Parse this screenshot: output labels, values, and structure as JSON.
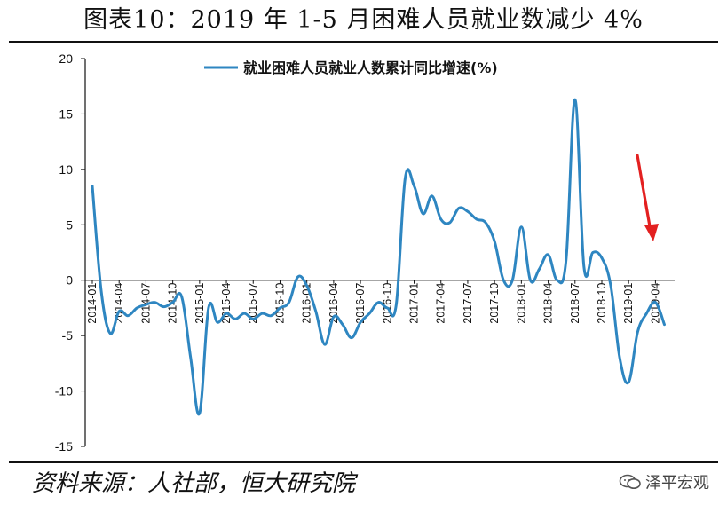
{
  "title": "图表10：2019 年 1-5 月困难人员就业数减少 4%",
  "footer": "资料来源：人社部，恒大研究院",
  "watermark": "泽平宏观",
  "colors": {
    "series": "#2E86C1",
    "arrow": "#E32020",
    "axis": "#111111"
  },
  "icons": {
    "watermark": "wechat-icon"
  },
  "chart_data": {
    "type": "line",
    "series": [
      {
        "name": "就业困难人员就业人数累计同比增速(%)",
        "x": [
          "2014-01",
          "2014-02",
          "2014-03",
          "2014-04",
          "2014-05",
          "2014-06",
          "2014-07",
          "2014-08",
          "2014-09",
          "2014-10",
          "2014-11",
          "2014-12",
          "2015-01",
          "2015-02",
          "2015-03",
          "2015-04",
          "2015-05",
          "2015-06",
          "2015-07",
          "2015-08",
          "2015-09",
          "2015-10",
          "2015-11",
          "2015-12",
          "2016-01",
          "2016-02",
          "2016-03",
          "2016-04",
          "2016-05",
          "2016-06",
          "2016-07",
          "2016-08",
          "2016-09",
          "2016-10",
          "2016-11",
          "2016-12",
          "2017-01",
          "2017-02",
          "2017-03",
          "2017-04",
          "2017-05",
          "2017-06",
          "2017-07",
          "2017-08",
          "2017-09",
          "2017-10",
          "2017-11",
          "2017-12",
          "2018-01",
          "2018-02",
          "2018-03",
          "2018-04",
          "2018-05",
          "2018-06",
          "2018-07",
          "2018-08",
          "2018-09",
          "2018-10",
          "2018-11",
          "2018-12",
          "2019-01",
          "2019-02",
          "2019-03",
          "2019-04",
          "2019-05"
        ],
        "values": [
          8.5,
          -1.0,
          -4.8,
          -2.8,
          -3.2,
          -2.5,
          -2.2,
          -2.0,
          -2.4,
          -2.0,
          -1.5,
          -7.0,
          -12.0,
          -2.5,
          -3.8,
          -3.0,
          -3.5,
          -3.0,
          -3.5,
          -3.0,
          -3.2,
          -2.5,
          -2.0,
          0.3,
          -0.5,
          -2.8,
          -5.8,
          -3.3,
          -4.0,
          -5.2,
          -3.8,
          -3.0,
          -2.0,
          -2.5,
          -2.2,
          9.2,
          8.5,
          6.0,
          7.6,
          5.5,
          5.2,
          6.5,
          6.2,
          5.5,
          5.2,
          3.5,
          0.0,
          0.0,
          4.8,
          0.0,
          1.0,
          2.3,
          0.0,
          1.8,
          16.3,
          1.2,
          2.5,
          2.0,
          -0.5,
          -7.0,
          -9.2,
          -4.7,
          -3.0,
          -2.0,
          -4.0
        ]
      }
    ],
    "x_tick_labels": [
      "2014-01",
      "2014-04",
      "2014-07",
      "2014-10",
      "2015-01",
      "2015-04",
      "2015-07",
      "2015-10",
      "2016-01",
      "2016-04",
      "2016-07",
      "2016-10",
      "2017-01",
      "2017-04",
      "2017-07",
      "2017-10",
      "2018-01",
      "2018-04",
      "2018-07",
      "2018-10",
      "2019-01",
      "2019-04"
    ],
    "y_ticks": [
      20,
      15,
      10,
      5,
      0,
      -5,
      -10,
      -15
    ],
    "ylim": [
      -15,
      20
    ],
    "legend_position": "top",
    "grid": false,
    "annotation": "red-down-arrow"
  }
}
